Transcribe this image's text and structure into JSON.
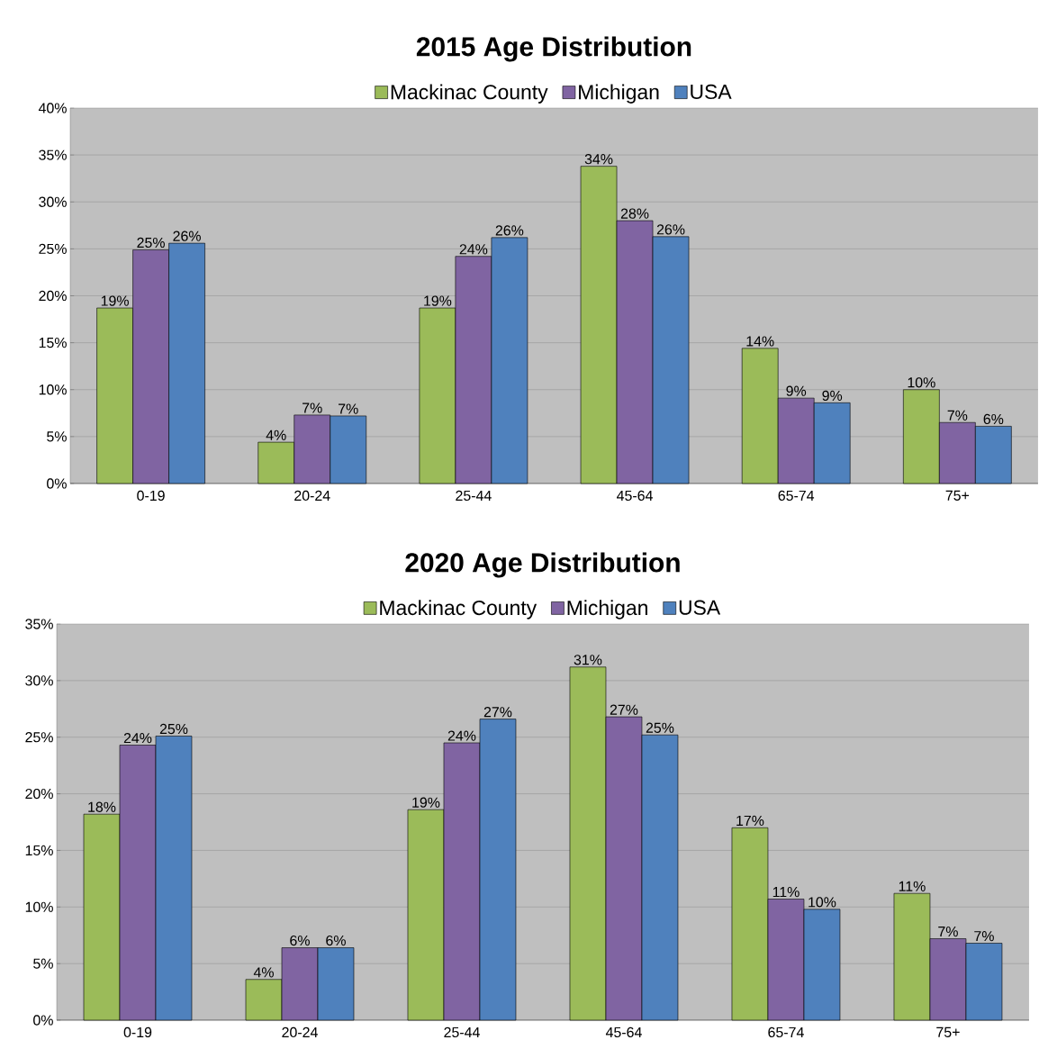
{
  "chart_data": [
    {
      "type": "bar",
      "title": "2015 Age Distribution",
      "categories": [
        "0-19",
        "20-24",
        "25-44",
        "45-64",
        "65-74",
        "75+"
      ],
      "series": [
        {
          "name": "Mackinac County",
          "color": "#9bbb59",
          "values": [
            18.7,
            4.4,
            18.7,
            33.8,
            14.4,
            10.0
          ],
          "value_labels": [
            "19%",
            "4%",
            "19%",
            "34%",
            "14%",
            "10%"
          ]
        },
        {
          "name": "Michigan",
          "color": "#8064a2",
          "values": [
            24.9,
            7.3,
            24.2,
            28.0,
            9.1,
            6.5
          ],
          "value_labels": [
            "25%",
            "7%",
            "24%",
            "28%",
            "9%",
            "7%"
          ]
        },
        {
          "name": "USA",
          "color": "#4f81bd",
          "values": [
            25.6,
            7.2,
            26.2,
            26.3,
            8.6,
            6.1
          ],
          "value_labels": [
            "26%",
            "7%",
            "26%",
            "26%",
            "9%",
            "6%"
          ]
        }
      ],
      "ylim": [
        0,
        40
      ],
      "yticks": [
        {
          "value": 0,
          "label": "0%"
        },
        {
          "value": 5,
          "label": "5%"
        },
        {
          "value": 10,
          "label": "10%"
        },
        {
          "value": 15,
          "label": "15%"
        },
        {
          "value": 20,
          "label": "20%"
        },
        {
          "value": 25,
          "label": "25%"
        },
        {
          "value": 30,
          "label": "30%"
        },
        {
          "value": 35,
          "label": "35%"
        },
        {
          "value": 40,
          "label": "40%"
        }
      ],
      "grid": "y",
      "legend": "top"
    },
    {
      "type": "bar",
      "title": "2020 Age Distribution",
      "categories": [
        "0-19",
        "20-24",
        "25-44",
        "45-64",
        "65-74",
        "75+"
      ],
      "series": [
        {
          "name": "Mackinac County",
          "color": "#9bbb59",
          "values": [
            18.2,
            3.6,
            18.6,
            31.2,
            17.0,
            11.2
          ],
          "value_labels": [
            "18%",
            "4%",
            "19%",
            "31%",
            "17%",
            "11%"
          ]
        },
        {
          "name": "Michigan",
          "color": "#8064a2",
          "values": [
            24.3,
            6.4,
            24.5,
            26.8,
            10.7,
            7.2
          ],
          "value_labels": [
            "24%",
            "6%",
            "24%",
            "27%",
            "11%",
            "7%"
          ]
        },
        {
          "name": "USA",
          "color": "#4f81bd",
          "values": [
            25.1,
            6.4,
            26.6,
            25.2,
            9.8,
            6.8
          ],
          "value_labels": [
            "25%",
            "6%",
            "27%",
            "25%",
            "10%",
            "7%"
          ]
        }
      ],
      "ylim": [
        0,
        35
      ],
      "yticks": [
        {
          "value": 0,
          "label": "0%"
        },
        {
          "value": 5,
          "label": "5%"
        },
        {
          "value": 10,
          "label": "10%"
        },
        {
          "value": 15,
          "label": "15%"
        },
        {
          "value": 20,
          "label": "20%"
        },
        {
          "value": 25,
          "label": "25%"
        },
        {
          "value": 30,
          "label": "30%"
        },
        {
          "value": 35,
          "label": "35%"
        }
      ],
      "grid": "y",
      "legend": "top"
    }
  ]
}
